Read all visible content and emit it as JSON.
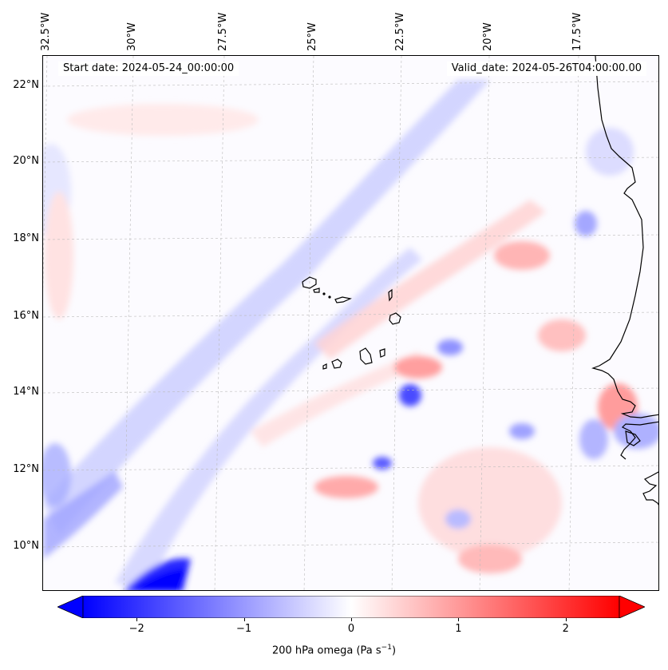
{
  "map": {
    "start_date": "Start date: 2024-05-24_00:00:00",
    "valid_date": "Valid_date: 2024-05-26T04:00:00.00",
    "longitude_labels": [
      "32.5°W",
      "30°W",
      "27.5°W",
      "25°W",
      "22.5°W",
      "20°W",
      "17.5°W"
    ],
    "latitude_labels": [
      "22°N",
      "20°N",
      "18°N",
      "16°N",
      "14°N",
      "12°N",
      "10°N"
    ],
    "lon_range": [
      -33.0,
      -15.3
    ],
    "lat_range": [
      8.8,
      22.8
    ],
    "field_colors": {
      "negative": "#0000ff",
      "neutral": "#ffffff",
      "positive": "#ff0000"
    }
  },
  "colorbar": {
    "label": "200 hPa omega (Pa s",
    "label_sup": "−1",
    "label_end": ")",
    "ticks": [
      "−2",
      "−1",
      "0",
      "1",
      "2"
    ],
    "tick_values": [
      -2,
      -1,
      0,
      1,
      2
    ],
    "range": [
      -2.5,
      2.5
    ],
    "extend": "both",
    "colormap": "bwr"
  }
}
